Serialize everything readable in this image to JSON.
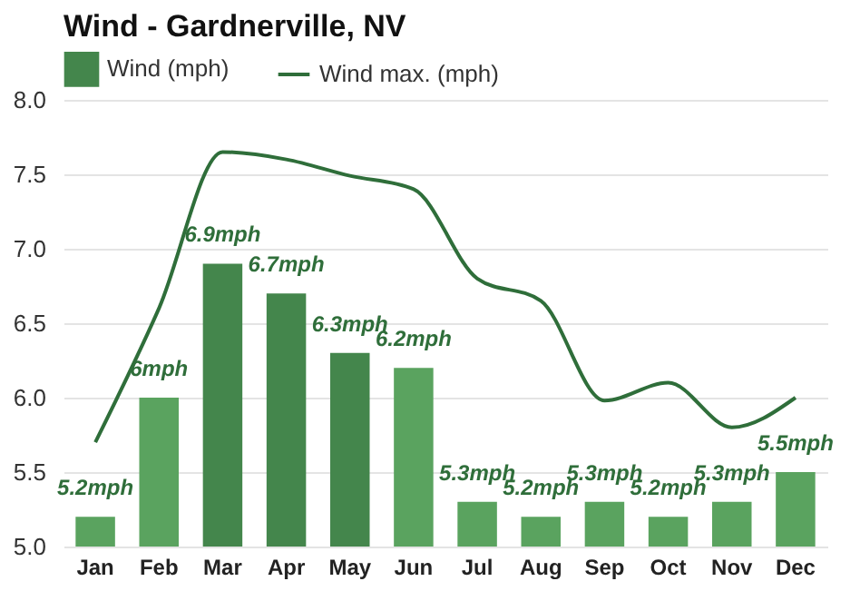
{
  "chart_data": {
    "type": "bar",
    "title": "Wind - Gardnerville, NV",
    "categories": [
      "Jan",
      "Feb",
      "Mar",
      "Apr",
      "May",
      "Jun",
      "Jul",
      "Aug",
      "Sep",
      "Oct",
      "Nov",
      "Dec"
    ],
    "series": [
      {
        "name": "Wind (mph)",
        "color": "#44864c",
        "colors": [
          "#5aa35f",
          "#5aa35f",
          "#44864c",
          "#44864c",
          "#44864c",
          "#5aa35f",
          "#5aa35f",
          "#5aa35f",
          "#5aa35f",
          "#5aa35f",
          "#5aa35f",
          "#5aa35f"
        ],
        "values": [
          5.2,
          6,
          6.9,
          6.7,
          6.3,
          6.2,
          5.3,
          5.2,
          5.3,
          5.2,
          5.3,
          5.5
        ],
        "value_labels": [
          "5.2mph",
          "6mph",
          "6.9mph",
          "6.7mph",
          "6.3mph",
          "6.2mph",
          "5.3mph",
          "5.2mph",
          "5.3mph",
          "5.2mph",
          "5.3mph",
          "5.5mph"
        ]
      },
      {
        "name": "Wind max. (mph)",
        "type": "line",
        "color": "#2f6e3a",
        "values": [
          5.7,
          6.6,
          7.65,
          7.6,
          7.49,
          7.4,
          6.8,
          6.65,
          5.98,
          6.1,
          5.8,
          6.0
        ]
      }
    ],
    "ylim": [
      5,
      8
    ],
    "yticks": [
      {
        "value": 5,
        "label": "5.0"
      },
      {
        "value": 5.5,
        "label": "5.5"
      },
      {
        "value": 6,
        "label": "6.0"
      },
      {
        "value": 6.5,
        "label": "6.5"
      },
      {
        "value": 7,
        "label": "7.0"
      },
      {
        "value": 7.5,
        "label": "7.5"
      },
      {
        "value": 8,
        "label": "8.0"
      }
    ],
    "grid": "y",
    "legend": "top left"
  }
}
